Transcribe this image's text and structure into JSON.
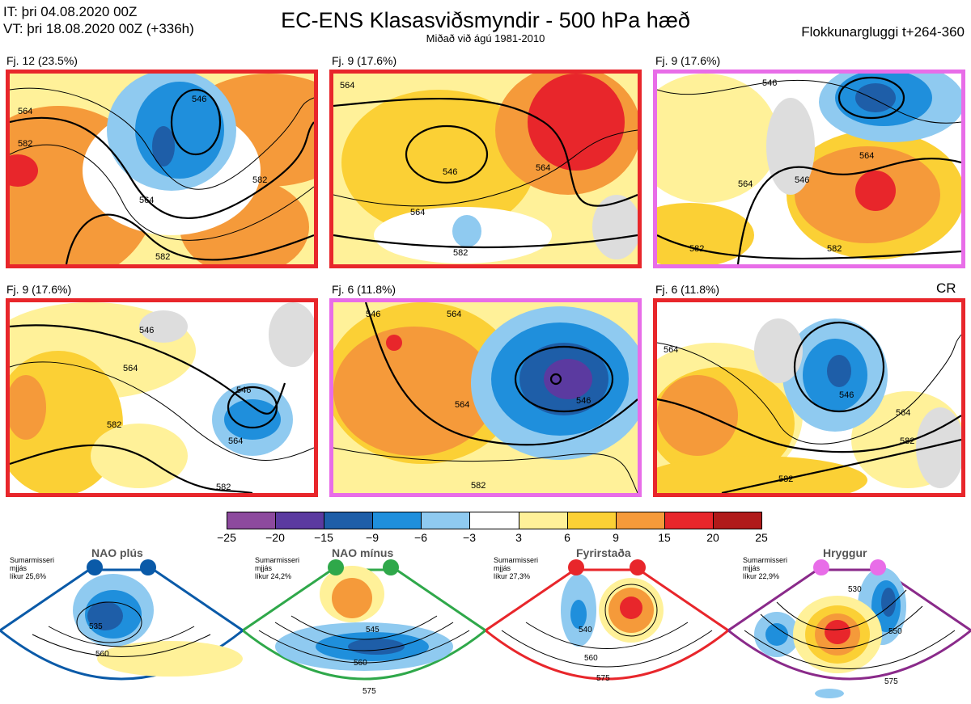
{
  "header": {
    "line1": "IT: þri 04.08.2020 00Z",
    "line2": "VT: þri 18.08.2020 00Z  (+336h)",
    "title": "EC-ENS Klasasviðsmyndir - 500 hPa hæð",
    "subtitle": "Miðað við ágú 1981-2010",
    "window": "Flokkunargluggi t+264-360"
  },
  "panels": [
    {
      "label": "Fj. 12 (23.5%)",
      "frame_color": "#e8262b",
      "contours": [
        "546",
        "564",
        "582",
        "564",
        "582",
        "582"
      ]
    },
    {
      "label": "Fj. 9 (17.6%)",
      "frame_color": "#e8262b",
      "contours": [
        "564",
        "546",
        "564",
        "564",
        "582"
      ]
    },
    {
      "label": "Fj. 9 (17.6%)",
      "frame_color": "#e86de8",
      "contours": [
        "546",
        "564",
        "546",
        "564",
        "582",
        "582"
      ]
    },
    {
      "label": "Fj. 9 (17.6%)",
      "frame_color": "#e8262b",
      "contours": [
        "546",
        "564",
        "582",
        "546",
        "564",
        "582"
      ]
    },
    {
      "label": "Fj. 6 (11.8%)",
      "frame_color": "#e86de8",
      "contours": [
        "546",
        "564",
        "546",
        "564",
        "582"
      ]
    },
    {
      "label": "Fj. 6 (11.8%)",
      "frame_color": "#e8262b",
      "contours": [
        "564",
        "546",
        "564",
        "582",
        "582"
      ]
    }
  ],
  "cr_tag": "CR",
  "colorbar": {
    "ticks": [
      "−25",
      "−20",
      "−15",
      "−9",
      "−6",
      "−3",
      "3",
      "6",
      "9",
      "15",
      "20",
      "25"
    ],
    "colors": [
      "#8d4a9e",
      "#5b3aa0",
      "#1e5ea8",
      "#1f8fdc",
      "#8fcaf0",
      "#ffffff",
      "#fff199",
      "#fbd035",
      "#f59a3a",
      "#e8262b",
      "#b01a1a"
    ]
  },
  "regimes": [
    {
      "title": "NAO plús",
      "note": [
        "Sumarmisseri",
        "mjjás",
        "líkur 25,6%"
      ],
      "dot_color": "#0a5aa8",
      "frame_color": "#0a5aa8",
      "contours": [
        "535",
        "560"
      ]
    },
    {
      "title": "NAO mínus",
      "note": [
        "Sumarmisseri",
        "mjjás",
        "líkur 24,2%"
      ],
      "dot_color": "#2fa84a",
      "frame_color": "#2fa84a",
      "contours": [
        "545",
        "560",
        "575"
      ]
    },
    {
      "title": "Fyrirstaða",
      "note": [
        "Sumarmisseri",
        "mjjás",
        "líkur 27,3%"
      ],
      "dot_color": "#e8262b",
      "frame_color": "#e8262b",
      "contours": [
        "540",
        "560",
        "575"
      ]
    },
    {
      "title": "Hryggur",
      "note": [
        "Sumarmisseri",
        "mjjás",
        "líkur 22,9%"
      ],
      "dot_color": "#e86de8",
      "frame_color": "#8a2a8a",
      "contours": [
        "530",
        "550",
        "575"
      ]
    }
  ]
}
